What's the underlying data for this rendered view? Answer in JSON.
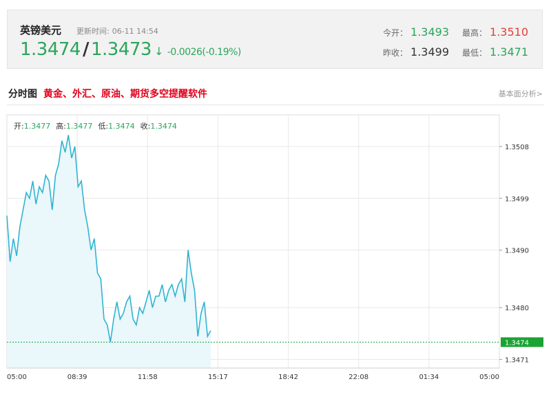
{
  "quote": {
    "name": "英镑美元",
    "time_label": "更新时间:",
    "time_value": "06-11 14:54",
    "bid": "1.3474",
    "sep": "/",
    "ask": "1.3473",
    "arrow": "↓",
    "change": "-0.0026(-0.19%)",
    "open_label": "今开：",
    "open_value": "1.3493",
    "high_label": "最高：",
    "high_value": "1.3510",
    "prev_close_label": "昨收：",
    "prev_close_value": "1.3499",
    "low_label": "最低：",
    "low_value": "1.3471"
  },
  "section": {
    "title": "分时图",
    "promo": "黄金、外汇、原油、期货多空提醒软件",
    "fundamental_link": "基本面分析>"
  },
  "ohlc": {
    "open_label": "开:",
    "open_value": "1.3477",
    "high_label": "高:",
    "high_value": "1.3477",
    "low_label": "低:",
    "low_value": "1.3474",
    "close_label": "收:",
    "close_value": "1.3474"
  },
  "colors": {
    "line": "#2fb4cf",
    "fill": "#eaf7fb",
    "current": "#1ba334",
    "grid": "#e8e8e8"
  },
  "chart_data": {
    "type": "area",
    "xlabel": "",
    "ylabel": "",
    "x_ticks": [
      "05:00",
      "08:39",
      "11:58",
      "15:17",
      "18:42",
      "22:08",
      "01:34",
      "05:00"
    ],
    "y_ticks": [
      1.3508,
      1.3499,
      1.349,
      1.348,
      1.3471
    ],
    "ylim": [
      1.34695,
      1.35135
    ],
    "current_value": 1.3474,
    "current_label": "1.3474",
    "series": [
      {
        "values": [
          1.3496,
          1.3488,
          1.3492,
          1.3489,
          1.3494,
          1.3497,
          1.35,
          1.3499,
          1.3502,
          1.3498,
          1.3501,
          1.35,
          1.3503,
          1.3502,
          1.3497,
          1.3503,
          1.3505,
          1.3509,
          1.3507,
          1.351,
          1.3506,
          1.3508,
          1.3501,
          1.3502,
          1.3497,
          1.3494,
          1.349,
          1.3492,
          1.3486,
          1.3485,
          1.3478,
          1.3477,
          1.3474,
          1.3478,
          1.3481,
          1.3478,
          1.3479,
          1.3481,
          1.3482,
          1.3478,
          1.3477,
          1.348,
          1.3479,
          1.3481,
          1.3483,
          1.348,
          1.3482,
          1.3482,
          1.3484,
          1.3481,
          1.3483,
          1.3484,
          1.3482,
          1.3484,
          1.3485,
          1.3481,
          1.349,
          1.3486,
          1.3483,
          1.3475,
          1.3479,
          1.3481,
          1.3475,
          1.3476
        ]
      }
    ]
  }
}
